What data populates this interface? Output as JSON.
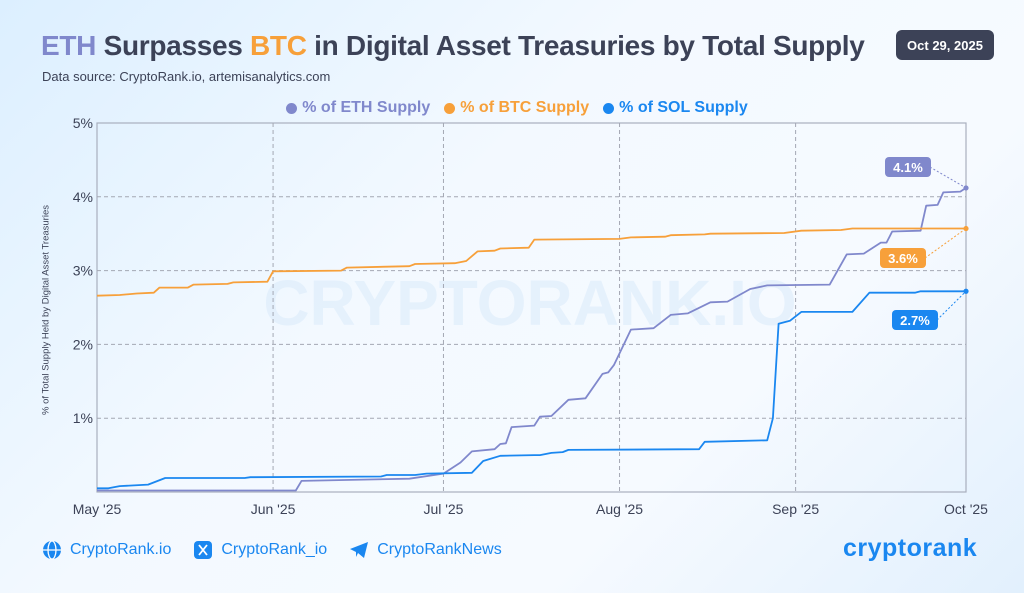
{
  "header": {
    "title_eth": "ETH",
    "title_mid": " Surpasses ",
    "title_btc": "BTC",
    "title_rest": " in Digital Asset Treasuries by Total Supply",
    "source": "Data source: CryptoRank.io, artemisanalytics.com",
    "date": "Oct 29, 2025"
  },
  "watermark": "CRYPTORANK.IO",
  "footer": {
    "links": [
      {
        "icon": "globe-icon",
        "label": "CryptoRank.io"
      },
      {
        "icon": "x-icon",
        "label": "CryptoRank_io"
      },
      {
        "icon": "telegram-icon",
        "label": "CryptoRankNews"
      }
    ],
    "logo": "cryptorank"
  },
  "chart_data": {
    "type": "line",
    "title": "ETH Surpasses BTC in Digital Asset Treasuries by Total Supply",
    "ylabel": "% of Total Supply Held by Digital Asset Treasuries",
    "xlabel": "",
    "xlim": [
      "2025-05-01",
      "2025-10-01"
    ],
    "ylim": [
      0,
      5
    ],
    "x_ticks": [
      {
        "date": "2025-05-01",
        "label": "May '25"
      },
      {
        "date": "2025-06-01",
        "label": "Jun '25"
      },
      {
        "date": "2025-07-01",
        "label": "Jul '25"
      },
      {
        "date": "2025-08-01",
        "label": "Aug '25"
      },
      {
        "date": "2025-09-01",
        "label": "Sep '25"
      },
      {
        "date": "2025-10-01",
        "label": "Oct '25"
      }
    ],
    "y_ticks": [
      {
        "value": 1,
        "label": "1%"
      },
      {
        "value": 2,
        "label": "2%"
      },
      {
        "value": 3,
        "label": "3%"
      },
      {
        "value": 4,
        "label": "4%"
      },
      {
        "value": 5,
        "label": "5%"
      }
    ],
    "grid": true,
    "legend_position": "top-center",
    "series": [
      {
        "name": "% of ETH Supply",
        "color": "#8088cc",
        "end_label": "4.1%",
        "points": [
          [
            "2025-05-01",
            0.02
          ],
          [
            "2025-06-05",
            0.02
          ],
          [
            "2025-06-06",
            0.15
          ],
          [
            "2025-06-25",
            0.18
          ],
          [
            "2025-07-01",
            0.25
          ],
          [
            "2025-07-04",
            0.4
          ],
          [
            "2025-07-06",
            0.55
          ],
          [
            "2025-07-10",
            0.58
          ],
          [
            "2025-07-11",
            0.65
          ],
          [
            "2025-07-12",
            0.66
          ],
          [
            "2025-07-13",
            0.88
          ],
          [
            "2025-07-17",
            0.9
          ],
          [
            "2025-07-18",
            1.02
          ],
          [
            "2025-07-20",
            1.03
          ],
          [
            "2025-07-23",
            1.25
          ],
          [
            "2025-07-26",
            1.27
          ],
          [
            "2025-07-29",
            1.6
          ],
          [
            "2025-07-30",
            1.62
          ],
          [
            "2025-07-31",
            1.72
          ],
          [
            "2025-08-03",
            2.2
          ],
          [
            "2025-08-07",
            2.22
          ],
          [
            "2025-08-10",
            2.4
          ],
          [
            "2025-08-13",
            2.42
          ],
          [
            "2025-08-17",
            2.57
          ],
          [
            "2025-08-20",
            2.58
          ],
          [
            "2025-08-24",
            2.75
          ],
          [
            "2025-08-27",
            2.8
          ],
          [
            "2025-09-07",
            2.81
          ],
          [
            "2025-09-10",
            3.22
          ],
          [
            "2025-09-13",
            3.23
          ],
          [
            "2025-09-16",
            3.38
          ],
          [
            "2025-09-17",
            3.38
          ],
          [
            "2025-09-18",
            3.53
          ],
          [
            "2025-09-23",
            3.54
          ],
          [
            "2025-09-24",
            3.88
          ],
          [
            "2025-09-26",
            3.89
          ],
          [
            "2025-09-27",
            4.06
          ],
          [
            "2025-09-30",
            4.07
          ],
          [
            "2025-10-01",
            4.12
          ]
        ]
      },
      {
        "name": "% of BTC Supply",
        "color": "#f7a03a",
        "end_label": "3.6%",
        "points": [
          [
            "2025-05-01",
            2.66
          ],
          [
            "2025-05-05",
            2.67
          ],
          [
            "2025-05-08",
            2.69
          ],
          [
            "2025-05-11",
            2.7
          ],
          [
            "2025-05-12",
            2.77
          ],
          [
            "2025-05-17",
            2.77
          ],
          [
            "2025-05-18",
            2.81
          ],
          [
            "2025-05-24",
            2.82
          ],
          [
            "2025-05-25",
            2.84
          ],
          [
            "2025-05-31",
            2.85
          ],
          [
            "2025-06-01",
            2.99
          ],
          [
            "2025-06-13",
            3.0
          ],
          [
            "2025-06-14",
            3.04
          ],
          [
            "2025-06-25",
            3.06
          ],
          [
            "2025-06-26",
            3.09
          ],
          [
            "2025-07-03",
            3.1
          ],
          [
            "2025-07-05",
            3.13
          ],
          [
            "2025-07-07",
            3.26
          ],
          [
            "2025-07-10",
            3.27
          ],
          [
            "2025-07-11",
            3.3
          ],
          [
            "2025-07-16",
            3.31
          ],
          [
            "2025-07-17",
            3.42
          ],
          [
            "2025-08-01",
            3.43
          ],
          [
            "2025-08-03",
            3.45
          ],
          [
            "2025-08-09",
            3.46
          ],
          [
            "2025-08-10",
            3.48
          ],
          [
            "2025-08-16",
            3.49
          ],
          [
            "2025-08-17",
            3.5
          ],
          [
            "2025-08-30",
            3.51
          ],
          [
            "2025-09-02",
            3.54
          ],
          [
            "2025-09-09",
            3.55
          ],
          [
            "2025-09-11",
            3.57
          ],
          [
            "2025-10-01",
            3.57
          ]
        ]
      },
      {
        "name": "% of SOL Supply",
        "color": "#1a87f0",
        "end_label": "2.7%",
        "points": [
          [
            "2025-05-01",
            0.05
          ],
          [
            "2025-05-03",
            0.05
          ],
          [
            "2025-05-05",
            0.08
          ],
          [
            "2025-05-10",
            0.1
          ],
          [
            "2025-05-13",
            0.19
          ],
          [
            "2025-05-27",
            0.19
          ],
          [
            "2025-05-28",
            0.2
          ],
          [
            "2025-06-20",
            0.21
          ],
          [
            "2025-06-21",
            0.23
          ],
          [
            "2025-06-26",
            0.23
          ],
          [
            "2025-06-28",
            0.25
          ],
          [
            "2025-07-06",
            0.26
          ],
          [
            "2025-07-08",
            0.42
          ],
          [
            "2025-07-11",
            0.49
          ],
          [
            "2025-07-17",
            0.5
          ],
          [
            "2025-07-18",
            0.5
          ],
          [
            "2025-07-20",
            0.53
          ],
          [
            "2025-07-22",
            0.54
          ],
          [
            "2025-07-23",
            0.57
          ],
          [
            "2025-08-15",
            0.58
          ],
          [
            "2025-08-16",
            0.68
          ],
          [
            "2025-08-27",
            0.7
          ],
          [
            "2025-08-28",
            1.0
          ],
          [
            "2025-08-29",
            2.28
          ],
          [
            "2025-08-31",
            2.32
          ],
          [
            "2025-09-02",
            2.44
          ],
          [
            "2025-09-11",
            2.44
          ],
          [
            "2025-09-14",
            2.7
          ],
          [
            "2025-09-22",
            2.7
          ],
          [
            "2025-09-23",
            2.72
          ],
          [
            "2025-10-01",
            2.72
          ]
        ]
      }
    ]
  }
}
